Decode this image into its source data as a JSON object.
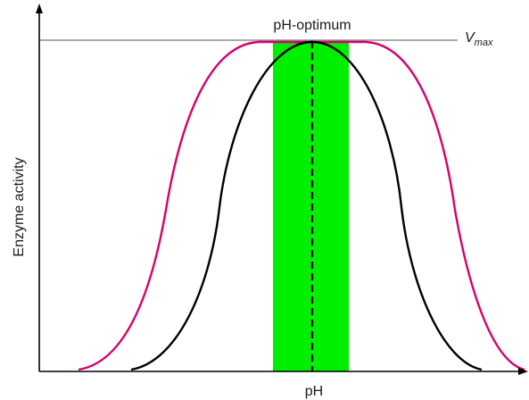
{
  "diagram": {
    "x_axis_label": "pH",
    "y_axis_label": "Enzyme activity",
    "optimum_label": "pH-optimum",
    "vmax_label": {
      "main": "V",
      "subscript": "max"
    },
    "colors": {
      "axis": "#000000",
      "vmax_line": "#555555",
      "narrow_curve": "#000000",
      "broad_curve": "#d6006e",
      "optimum_band": "#00ee00",
      "optimum_line": "#000000"
    }
  }
}
